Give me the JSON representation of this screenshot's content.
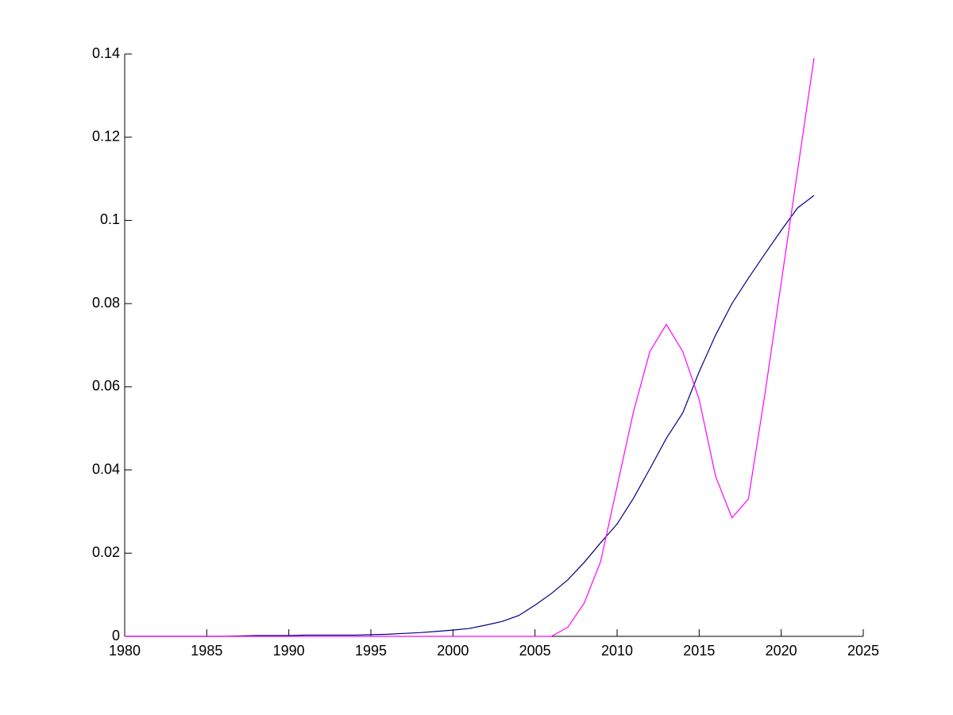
{
  "chart_data": {
    "type": "line",
    "x": [
      1980,
      1981,
      1982,
      1983,
      1984,
      1985,
      1986,
      1987,
      1988,
      1989,
      1990,
      1991,
      1992,
      1993,
      1994,
      1995,
      1996,
      1997,
      1998,
      1999,
      2000,
      2001,
      2002,
      2003,
      2004,
      2005,
      2006,
      2007,
      2008,
      2009,
      2010,
      2011,
      2012,
      2013,
      2014,
      2015,
      2016,
      2017,
      2018,
      2019,
      2020,
      2021,
      2022
    ],
    "series": [
      {
        "color": "#000080",
        "values": [
          0,
          0,
          0,
          0,
          0,
          0,
          0,
          0.0001,
          0.0002,
          0.0002,
          0.0002,
          0.0003,
          0.0003,
          0.0003,
          0.0003,
          0.0004,
          0.0005,
          0.0007,
          0.0009,
          0.0012,
          0.0015,
          0.0019,
          0.0027,
          0.0036,
          0.005,
          0.0075,
          0.0103,
          0.0136,
          0.0178,
          0.0225,
          0.027,
          0.0332,
          0.0403,
          0.0476,
          0.0537,
          0.0636,
          0.0724,
          0.08,
          0.0861,
          0.0919,
          0.0976,
          0.103,
          0.106
        ]
      },
      {
        "color": "#ff00ff",
        "values": [
          0,
          0,
          0,
          0,
          0,
          0,
          0,
          0,
          0,
          0,
          0,
          0,
          0,
          0,
          0,
          0,
          0,
          0,
          0,
          0,
          0,
          0,
          0,
          0,
          0,
          0,
          0,
          0.0022,
          0.008,
          0.018,
          0.036,
          0.054,
          0.0685,
          0.075,
          0.0685,
          0.057,
          0.0385,
          0.0285,
          0.033,
          0.058,
          0.085,
          0.112,
          0.139
        ]
      }
    ],
    "xlim": [
      1980,
      2025
    ],
    "xticks": [
      1980,
      1985,
      1990,
      1995,
      2000,
      2005,
      2010,
      2015,
      2020,
      2025
    ],
    "ylim": [
      0,
      0.14
    ],
    "yticks": [
      0,
      0.02,
      0.04,
      0.06,
      0.08,
      0.1,
      0.12,
      0.14
    ]
  }
}
